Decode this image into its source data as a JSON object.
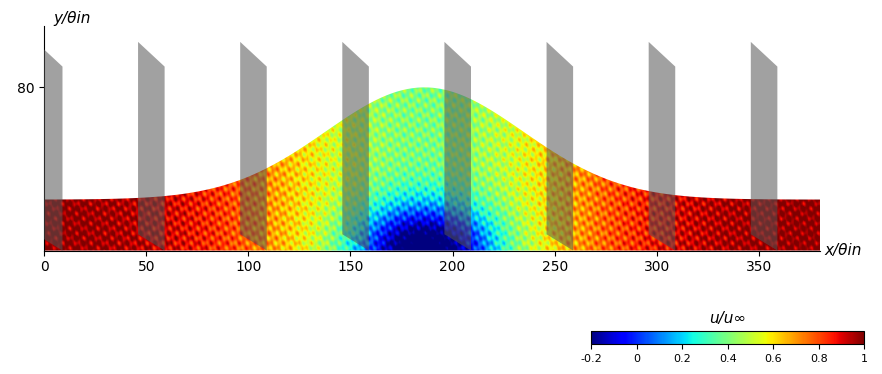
{
  "chart_data": {
    "type": "flow_field",
    "xlabel": "x/θin",
    "ylabel": "y/θin",
    "xlim": [
      0,
      380
    ],
    "ylim": [
      0,
      110
    ],
    "xticks": [
      0,
      50,
      100,
      150,
      200,
      250,
      300,
      350
    ],
    "yticks": [
      80
    ],
    "colorbar": {
      "label": "u/u∞",
      "range": [
        -0.2,
        1
      ],
      "ticks": [
        -0.2,
        0,
        0.2,
        0.4,
        0.6,
        0.8,
        1
      ]
    }
  }
}
